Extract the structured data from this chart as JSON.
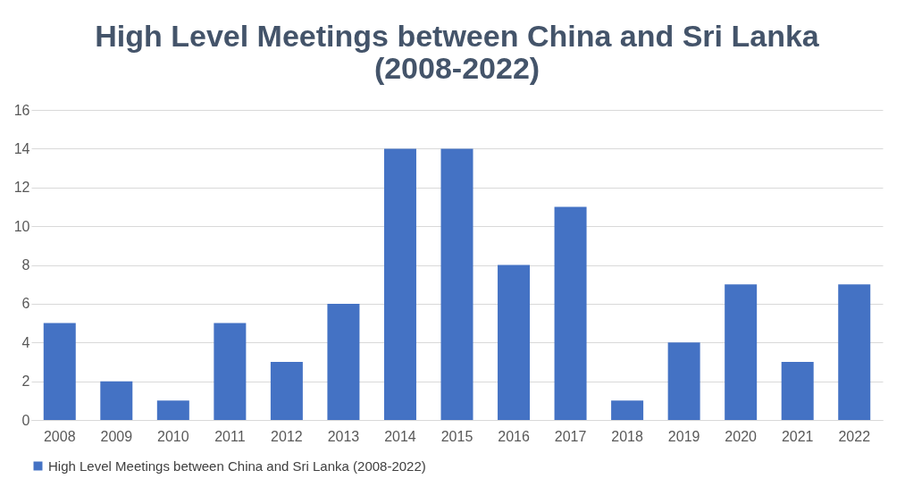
{
  "chart_data": {
    "type": "bar",
    "title": "High Level Meetings between China and Sri Lanka (2008-2022)",
    "categories": [
      "2008",
      "2009",
      "2010",
      "2011",
      "2012",
      "2013",
      "2014",
      "2015",
      "2016",
      "2017",
      "2018",
      "2019",
      "2020",
      "2021",
      "2022"
    ],
    "series": [
      {
        "name": "High Level Meetings between China and Sri Lanka (2008-2022)",
        "color": "#4472c4",
        "values": [
          5,
          2,
          1,
          5,
          3,
          6,
          14,
          14,
          8,
          11,
          1,
          4,
          7,
          3,
          7
        ]
      }
    ],
    "ylim": [
      0,
      16
    ],
    "yticks": [
      0,
      2,
      4,
      6,
      8,
      10,
      12,
      14,
      16
    ],
    "grid": "y",
    "legend": "bottom"
  }
}
